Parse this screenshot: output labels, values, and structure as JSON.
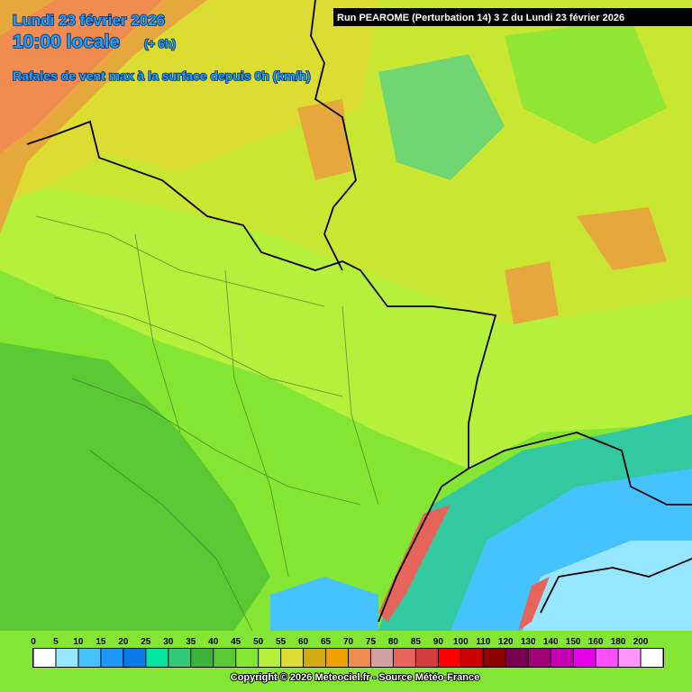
{
  "header": {
    "date": "Lundi 23 février 2026",
    "time": "10:00 locale",
    "offset": "(+ 6h)",
    "subtitle": "Rafales de vent max à la surface depuis 0h (km/h)",
    "run": "Run PEAROME (Perturbation 14) 3 Z du Lundi 23 février 2026"
  },
  "legend": {
    "items": [
      {
        "label": 0,
        "color": "#ffffff"
      },
      {
        "label": 5,
        "color": "#96e6ff"
      },
      {
        "label": 10,
        "color": "#46c3ff"
      },
      {
        "label": 15,
        "color": "#1e96ff"
      },
      {
        "label": 20,
        "color": "#0a78e6"
      },
      {
        "label": 25,
        "color": "#00e6a0"
      },
      {
        "label": 30,
        "color": "#32c878"
      },
      {
        "label": 35,
        "color": "#3cb43c"
      },
      {
        "label": 40,
        "color": "#5ac832"
      },
      {
        "label": 45,
        "color": "#82e632"
      },
      {
        "label": 50,
        "color": "#b4f03c"
      },
      {
        "label": 55,
        "color": "#dcdc32"
      },
      {
        "label": 60,
        "color": "#d2aa14"
      },
      {
        "label": 65,
        "color": "#f0a000"
      },
      {
        "label": 70,
        "color": "#f08c50"
      },
      {
        "label": 75,
        "color": "#d2a0a0"
      },
      {
        "label": 80,
        "color": "#e6645a"
      },
      {
        "label": 85,
        "color": "#d23c3c"
      },
      {
        "label": 90,
        "color": "#ff0000"
      },
      {
        "label": 100,
        "color": "#c80000"
      },
      {
        "label": 110,
        "color": "#8c0000"
      },
      {
        "label": 120,
        "color": "#780050"
      },
      {
        "label": 130,
        "color": "#a00078"
      },
      {
        "label": 140,
        "color": "#c800b4"
      },
      {
        "label": 150,
        "color": "#e600e6"
      },
      {
        "label": 160,
        "color": "#ff50ff"
      },
      {
        "label": 180,
        "color": "#ff96ff"
      },
      {
        "label": 200,
        "color": "#ffffff"
      }
    ]
  },
  "footer": {
    "copyright": "Copyright © 2026 Meteociel.fr - Source Météo-France"
  }
}
